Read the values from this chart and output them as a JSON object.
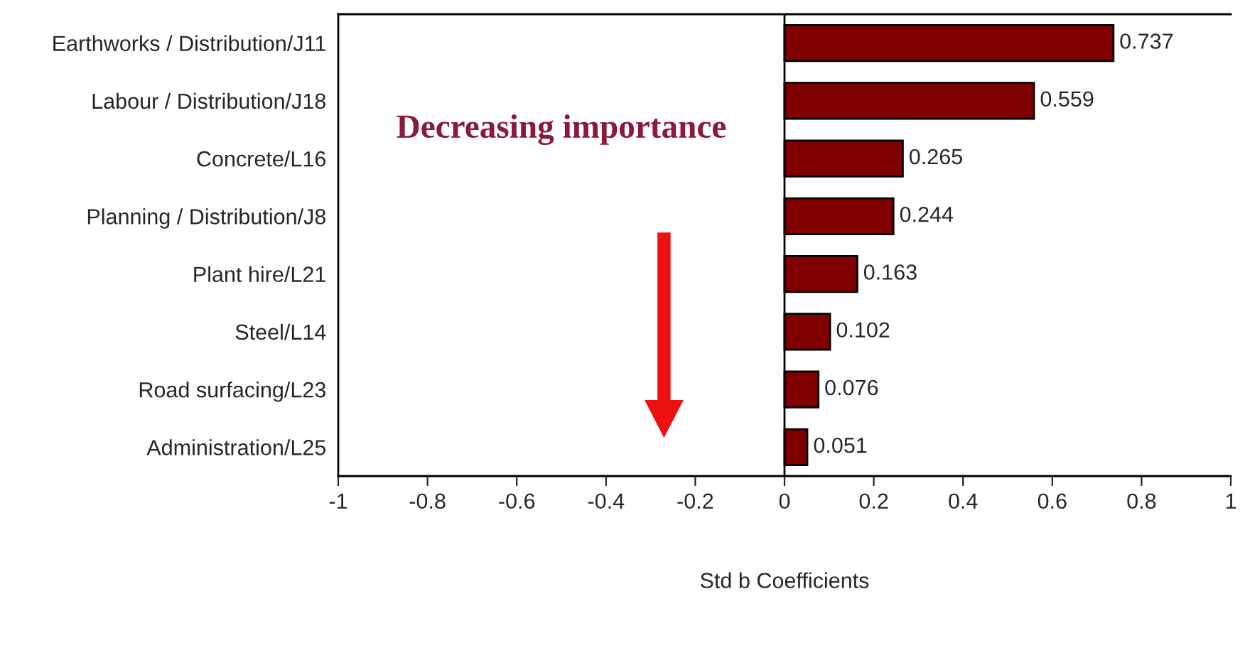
{
  "chart_data": {
    "type": "bar",
    "orientation": "horizontal",
    "xlabel": "Std b Coefficients",
    "categories": [
      "Earthworks / Distribution/J11",
      "Labour / Distribution/J18",
      "Concrete/L16",
      "Planning / Distribution/J8",
      "Plant hire/L21",
      "Steel/L14",
      "Road surfacing/L23",
      "Administration/L25"
    ],
    "values": [
      0.737,
      0.559,
      0.265,
      0.244,
      0.163,
      0.102,
      0.076,
      0.051
    ],
    "color": "#800000",
    "data_labels": true,
    "grid": false,
    "xlim": [
      -1,
      1
    ],
    "xticks": [
      -1,
      -0.8,
      -0.6,
      -0.4,
      -0.2,
      0,
      0.2,
      0.4,
      0.6,
      0.8,
      1
    ],
    "ref_lines": [
      {
        "axis": "x",
        "value": 0,
        "color": "#000000"
      }
    ],
    "annotations": [
      "Decreasing importance"
    ]
  }
}
